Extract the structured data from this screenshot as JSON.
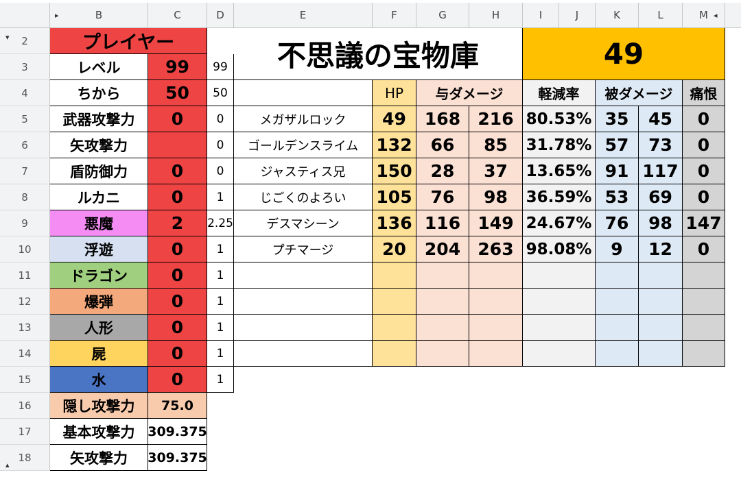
{
  "columns": [
    "B",
    "C",
    "D",
    "E",
    "F",
    "G",
    "H",
    "I",
    "J",
    "K",
    "L",
    "M"
  ],
  "rows": [
    "2",
    "3",
    "4",
    "5",
    "6",
    "7",
    "8",
    "9",
    "10",
    "11",
    "12",
    "13",
    "14",
    "15",
    "16",
    "17",
    "18"
  ],
  "player": {
    "header": "プレイヤー",
    "stats": [
      {
        "label": "レベル",
        "value": "99",
        "d": "99",
        "color": "#ffffff"
      },
      {
        "label": "ちから",
        "value": "50",
        "d": "50",
        "color": "#ffffff"
      },
      {
        "label": "武器攻撃力",
        "value": "0",
        "d": "0",
        "color": "#ffffff"
      },
      {
        "label": "矢攻撃力",
        "value": "",
        "d": "0",
        "color": "#ffffff"
      },
      {
        "label": "盾防御力",
        "value": "0",
        "d": "0",
        "color": "#ffffff"
      },
      {
        "label": "ルカニ",
        "value": "0",
        "d": "1",
        "color": "#ffffff"
      },
      {
        "label": "悪魔",
        "value": "2",
        "d": "2.25",
        "color": "#f48cf4"
      },
      {
        "label": "浮遊",
        "value": "0",
        "d": "1",
        "color": "#d6e0f0"
      },
      {
        "label": "ドラゴン",
        "value": "0",
        "d": "1",
        "color": "#9fcf7f"
      },
      {
        "label": "爆弾",
        "value": "0",
        "d": "1",
        "color": "#f4a97c"
      },
      {
        "label": "人形",
        "value": "0",
        "d": "1",
        "color": "#a8a8a8"
      },
      {
        "label": "屍",
        "value": "0",
        "d": "1",
        "color": "#ffd45e"
      },
      {
        "label": "水",
        "value": "0",
        "d": "1",
        "color": "#4a74c4"
      }
    ],
    "hidden": [
      {
        "label": "隠し攻撃力",
        "value": "75.0",
        "label_bg": "#f8cbad",
        "value_bg": "#f8cbad"
      },
      {
        "label": "基本攻撃力",
        "value": "309.375",
        "label_bg": "#ffffff",
        "value_bg": "#ffffff"
      },
      {
        "label": "矢攻撃力",
        "value": "309.375",
        "label_bg": "#ffffff",
        "value_bg": "#ffffff"
      }
    ]
  },
  "dungeon": {
    "title": "不思議の宝物庫",
    "floor": "49"
  },
  "table": {
    "headers": {
      "hp": "HP",
      "dmg": "与ダメージ",
      "reduction": "軽減率",
      "taken": "被ダメージ",
      "pain": "痛恨"
    },
    "enemies": [
      {
        "name": "メガザルロック",
        "hp": "49",
        "dmg_min": "168",
        "dmg_max": "216",
        "reduction": "80.53%",
        "taken_min": "35",
        "taken_max": "45",
        "pain": "0"
      },
      {
        "name": "ゴールデンスライム",
        "hp": "132",
        "dmg_min": "66",
        "dmg_max": "85",
        "reduction": "31.78%",
        "taken_min": "57",
        "taken_max": "73",
        "pain": "0"
      },
      {
        "name": "ジャスティス兄",
        "hp": "150",
        "dmg_min": "28",
        "dmg_max": "37",
        "reduction": "13.65%",
        "taken_min": "91",
        "taken_max": "117",
        "pain": "0"
      },
      {
        "name": "じごくのよろい",
        "hp": "105",
        "dmg_min": "76",
        "dmg_max": "98",
        "reduction": "36.59%",
        "taken_min": "53",
        "taken_max": "69",
        "pain": "0"
      },
      {
        "name": "デスマシーン",
        "hp": "136",
        "dmg_min": "116",
        "dmg_max": "149",
        "reduction": "24.67%",
        "taken_min": "76",
        "taken_max": "98",
        "pain": "147"
      },
      {
        "name": "プチマージ",
        "hp": "20",
        "dmg_min": "204",
        "dmg_max": "263",
        "reduction": "98.08%",
        "taken_min": "9",
        "taken_max": "12",
        "pain": "0"
      },
      {
        "name": "",
        "hp": "",
        "dmg_min": "",
        "dmg_max": "",
        "reduction": "",
        "taken_min": "",
        "taken_max": "",
        "pain": ""
      },
      {
        "name": "",
        "hp": "",
        "dmg_min": "",
        "dmg_max": "",
        "reduction": "",
        "taken_min": "",
        "taken_max": "",
        "pain": ""
      },
      {
        "name": "",
        "hp": "",
        "dmg_min": "",
        "dmg_max": "",
        "reduction": "",
        "taken_min": "",
        "taken_max": "",
        "pain": ""
      },
      {
        "name": "",
        "hp": "",
        "dmg_min": "",
        "dmg_max": "",
        "reduction": "",
        "taken_min": "",
        "taken_max": "",
        "pain": ""
      }
    ]
  },
  "colors": {
    "red": "#ef4444",
    "floor_bg": "#ffc000",
    "hp_bg": "#ffe29a",
    "dmg_bg": "#fbe0d4",
    "reduction_bg": "#f2f2f2",
    "taken_bg": "#dde9f5",
    "pain_bg": "#d4d4d4"
  }
}
